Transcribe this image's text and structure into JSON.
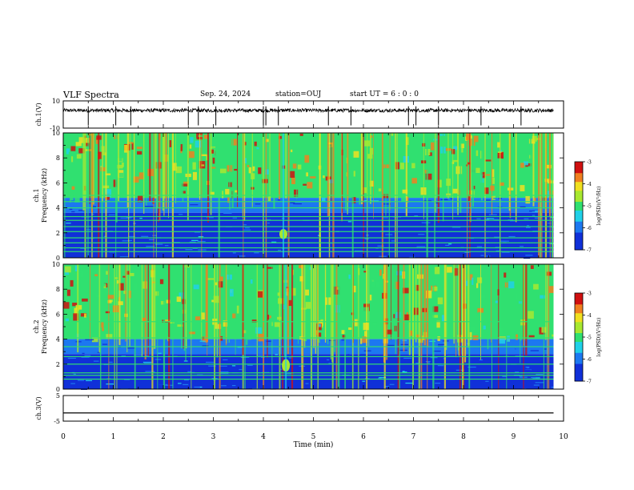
{
  "header": {
    "title": "VLF Spectra",
    "date": "Sep. 24, 2024",
    "station": "station=OUJ",
    "start": "start  UT =   6 : 0 : 0"
  },
  "chart_data": [
    {
      "type": "line",
      "panel": "ch1-waveform",
      "ylabel": "ch.1(V)",
      "ylim": [
        -10,
        10
      ],
      "yticks": [
        "10",
        "-10"
      ],
      "baseline": 3,
      "spike_times_min": [
        0.5,
        1.05,
        1.35,
        2.5,
        2.7,
        3.05,
        4.0,
        4.05,
        4.3,
        5.3,
        5.75,
        6.9,
        7.05,
        7.5,
        8.1,
        8.35,
        9.15
      ],
      "color": "#000000"
    },
    {
      "type": "heatmap",
      "panel": "ch1-spectrogram",
      "ylabel": "ch.1\nFrequency (kHz)",
      "ylim": [
        0,
        10
      ],
      "yticks": [
        "0",
        "2",
        "4",
        "6",
        "8",
        "10"
      ],
      "x_range_min": [
        0,
        9.8
      ],
      "colorbar": {
        "label": "log(PSD)(V²/Hz)",
        "ticks": [
          "-3",
          "-4",
          "-5",
          "-6",
          "-7"
        ],
        "range": [
          -7,
          -3
        ]
      },
      "noise_floor_kHz": 4.8,
      "bright_lines_kHz": [
        0.5,
        0.8,
        1.2,
        1.6,
        2.1,
        2.5,
        3.0,
        3.3,
        4.0,
        4.5,
        5.0
      ],
      "event": {
        "time_min": 4.4,
        "freq_kHz": [
          1.5,
          2.3
        ]
      }
    },
    {
      "type": "heatmap",
      "panel": "ch2-spectrogram",
      "ylabel": "ch.2\nFrequency (kHz)",
      "ylim": [
        0,
        10
      ],
      "yticks": [
        "0",
        "2",
        "4",
        "6",
        "8",
        "10"
      ],
      "x_range_min": [
        0,
        9.8
      ],
      "colorbar": {
        "label": "log(PSD)(V²/Hz)",
        "ticks": [
          "-3",
          "-4",
          "-5",
          "-6",
          "-7"
        ],
        "range": [
          -7,
          -3
        ]
      },
      "noise_floor_kHz": 4.0,
      "bright_lines_kHz": [
        0.8,
        1.1,
        1.3,
        2.0,
        2.6,
        3.4,
        4.1,
        5.4
      ],
      "event": {
        "time_min": 4.45,
        "freq_kHz": [
          1.4,
          2.4
        ]
      }
    },
    {
      "type": "line",
      "panel": "ch3-waveform",
      "ylabel": "ch.3(V)",
      "ylim": [
        -5,
        5
      ],
      "yticks": [
        "5",
        "-5"
      ],
      "values_constant": -1.8,
      "color": "#000000"
    }
  ],
  "xaxis": {
    "label": "Time (min)",
    "xlim": [
      0,
      10
    ],
    "ticks": [
      "0",
      "1",
      "2",
      "3",
      "4",
      "5",
      "6",
      "7",
      "8",
      "9",
      "10"
    ]
  }
}
